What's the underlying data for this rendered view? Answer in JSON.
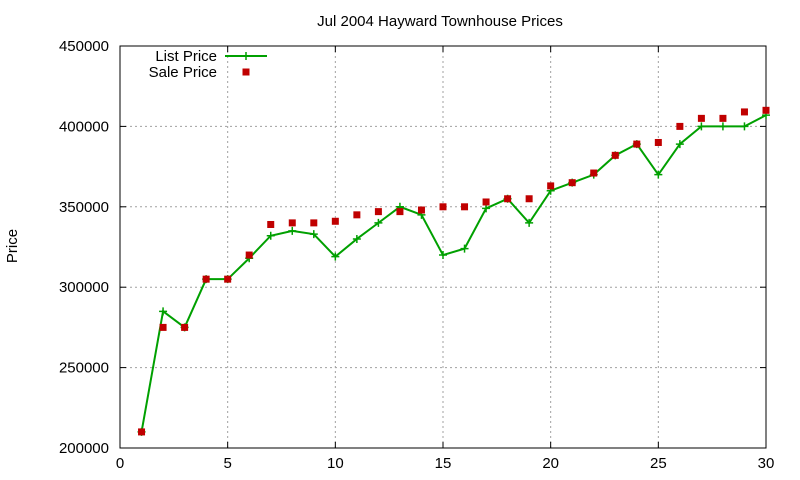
{
  "chart_data": {
    "type": "line",
    "title": "Jul 2004 Hayward Townhouse Prices",
    "xlabel": "",
    "ylabel": "Price",
    "xlim": [
      0,
      30
    ],
    "ylim": [
      200000,
      450000
    ],
    "xticks": [
      0,
      5,
      10,
      15,
      20,
      25,
      30
    ],
    "yticks": [
      200000,
      250000,
      300000,
      350000,
      400000,
      450000
    ],
    "grid": true,
    "legend_position": "top-left",
    "series": [
      {
        "name": "List Price",
        "style": "line-plus",
        "color": "#00a000",
        "x": [
          1,
          2,
          3,
          4,
          5,
          6,
          7,
          8,
          9,
          10,
          11,
          12,
          13,
          14,
          15,
          16,
          17,
          18,
          19,
          20,
          21,
          22,
          23,
          24,
          25,
          26,
          27,
          28,
          29,
          30
        ],
        "values": [
          210000,
          285000,
          275000,
          305000,
          305000,
          318000,
          332000,
          335000,
          333000,
          319000,
          330000,
          340000,
          350000,
          345000,
          320000,
          324000,
          349000,
          355000,
          340000,
          360000,
          365000,
          370000,
          382000,
          389000,
          370000,
          389000,
          400000,
          400000,
          400000,
          407000
        ]
      },
      {
        "name": "Sale Price",
        "style": "points-square",
        "color": "#c00000",
        "x": [
          1,
          2,
          3,
          4,
          5,
          6,
          7,
          8,
          9,
          10,
          11,
          12,
          13,
          14,
          15,
          16,
          17,
          18,
          19,
          20,
          21,
          22,
          23,
          24,
          25,
          26,
          27,
          28,
          29,
          30
        ],
        "values": [
          210000,
          275000,
          275000,
          305000,
          305000,
          320000,
          339000,
          340000,
          340000,
          341000,
          345000,
          347000,
          347000,
          348000,
          350000,
          350000,
          353000,
          355000,
          355000,
          363000,
          365000,
          371000,
          382000,
          389000,
          390000,
          400000,
          405000,
          405000,
          409000,
          410000
        ]
      }
    ]
  }
}
